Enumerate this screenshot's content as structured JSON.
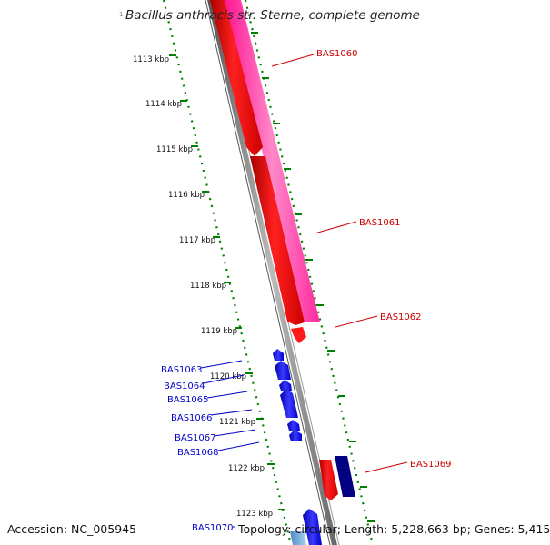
{
  "title": "Bacillus anthracis str. Sterne, complete genome",
  "corner_mark": "1",
  "accession": "Accession: NC_005945",
  "topology": "Topology: circular; Length: 5,228,663 bp; Genes: 5,415",
  "colors": {
    "forward_gene": "#ff0000",
    "forward_cds_outline": "#ff3399",
    "reverse_gene": "#0000ff",
    "reverse_dark": "#000080",
    "tick_green": "#008000",
    "backbone_gray": "#888888",
    "label_red": "#cc0000",
    "label_blue": "#0000cc"
  },
  "ticks": [
    {
      "label": "1113 kbp"
    },
    {
      "label": "1114 kbp"
    },
    {
      "label": "1115 kbp"
    },
    {
      "label": "1116 kbp"
    },
    {
      "label": "1117 kbp"
    },
    {
      "label": "1118 kbp"
    },
    {
      "label": "1119 kbp"
    },
    {
      "label": "1120 kbp"
    },
    {
      "label": "1121 kbp"
    },
    {
      "label": "1122 kbp"
    },
    {
      "label": "1123 kbp"
    }
  ],
  "gene_labels_right": [
    "BAS1060",
    "BAS1061",
    "BAS1062",
    "BAS1069"
  ],
  "gene_labels_left": [
    "BAS1063",
    "BAS1064",
    "BAS1065",
    "BAS1066",
    "BAS1067",
    "BAS1068",
    "BAS1070"
  ]
}
